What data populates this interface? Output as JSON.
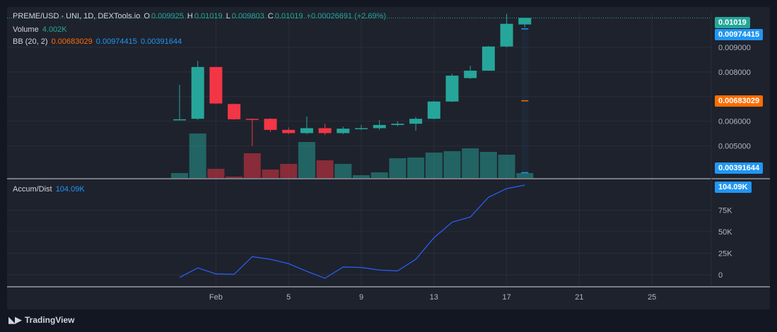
{
  "legend": {
    "symbol": "PREME/USD - UNI, 1D, DEXTools.io",
    "o_label": "O",
    "o_value": "0.009925",
    "h_label": "H",
    "h_value": "0.01019",
    "l_label": "L",
    "l_value": "0.009803",
    "c_label": "C",
    "c_value": "0.01019",
    "change": "+0.00026691 (+2.69%)",
    "volume_label": "Volume",
    "volume_value": "4.002K",
    "bb_label": "BB (20, 2)",
    "bb_basis": "0.00683029",
    "bb_upper": "0.00974415",
    "bb_lower": "0.00391644",
    "ad_label": "Accum/Dist",
    "ad_value": "104.09K"
  },
  "price_tags": {
    "last": "0.01019",
    "upper": "0.00974415",
    "basis": "0.00683029",
    "lower": "0.00391644",
    "ad": "104.09K"
  },
  "colors": {
    "up": "#26a69a",
    "down": "#f23645",
    "bb_basis": "#ff6d00",
    "bb_band": "#2196f3",
    "ad_line": "#2962ff"
  },
  "brand": "TradingView",
  "chart_data": [
    {
      "type": "candlestick",
      "x_tick_labels": [
        "Feb",
        "5",
        "9",
        "13",
        "17",
        "21",
        "25"
      ],
      "y_tick_labels": [
        "0.005000",
        "0.006000",
        "0.008000",
        "0.009000"
      ],
      "ylim": [
        0.0037,
        0.0104
      ],
      "candles": [
        {
          "o": 0.00608,
          "h": 0.00748,
          "l": 0.00606,
          "c": 0.00608
        },
        {
          "o": 0.0061,
          "h": 0.00845,
          "l": 0.00606,
          "c": 0.0082
        },
        {
          "o": 0.0082,
          "h": 0.0082,
          "l": 0.0067,
          "c": 0.00672
        },
        {
          "o": 0.0067,
          "h": 0.00672,
          "l": 0.00606,
          "c": 0.00608
        },
        {
          "o": 0.0061,
          "h": 0.0061,
          "l": 0.005,
          "c": 0.00608
        },
        {
          "o": 0.0061,
          "h": 0.00612,
          "l": 0.00556,
          "c": 0.00565
        },
        {
          "o": 0.00565,
          "h": 0.00575,
          "l": 0.00548,
          "c": 0.00552
        },
        {
          "o": 0.00552,
          "h": 0.0062,
          "l": 0.00548,
          "c": 0.00572
        },
        {
          "o": 0.00572,
          "h": 0.0059,
          "l": 0.00545,
          "c": 0.00552
        },
        {
          "o": 0.00552,
          "h": 0.00578,
          "l": 0.00548,
          "c": 0.0057
        },
        {
          "o": 0.0057,
          "h": 0.00585,
          "l": 0.00565,
          "c": 0.00572
        },
        {
          "o": 0.00572,
          "h": 0.00605,
          "l": 0.00565,
          "c": 0.00585
        },
        {
          "o": 0.00585,
          "h": 0.006,
          "l": 0.0058,
          "c": 0.0059
        },
        {
          "o": 0.0059,
          "h": 0.00618,
          "l": 0.00562,
          "c": 0.0061
        },
        {
          "o": 0.0061,
          "h": 0.00682,
          "l": 0.00608,
          "c": 0.0068
        },
        {
          "o": 0.0068,
          "h": 0.00792,
          "l": 0.00678,
          "c": 0.00785
        },
        {
          "o": 0.00775,
          "h": 0.00825,
          "l": 0.00772,
          "c": 0.00805
        },
        {
          "o": 0.00805,
          "h": 0.00905,
          "l": 0.00805,
          "c": 0.00903
        },
        {
          "o": 0.00903,
          "h": 0.01035,
          "l": 0.009,
          "c": 0.00995
        },
        {
          "o": 0.009925,
          "h": 0.01019,
          "l": 0.009803,
          "c": 0.01019
        }
      ]
    },
    {
      "type": "bar",
      "series_name": "Volume",
      "values": [
        7,
        63,
        13,
        2,
        35,
        12,
        20,
        51,
        25,
        20,
        4,
        8,
        28,
        29,
        36,
        38,
        42,
        37,
        33,
        7
      ],
      "colors": [
        "up",
        "up",
        "down",
        "down",
        "down",
        "down",
        "down",
        "up",
        "down",
        "up",
        "up",
        "up",
        "up",
        "up",
        "up",
        "up",
        "up",
        "up",
        "up",
        "up"
      ]
    },
    {
      "type": "line",
      "series_name": "Accum/Dist",
      "y_tick_labels": [
        "0",
        "25K",
        "50K",
        "75K"
      ],
      "ylim": [
        -5,
        108
      ],
      "values": [
        -3,
        8,
        1,
        0.5,
        21,
        18,
        13,
        4,
        -4,
        9,
        8.5,
        5.5,
        4.5,
        18,
        43,
        61,
        67,
        90,
        100,
        104.09
      ]
    }
  ]
}
